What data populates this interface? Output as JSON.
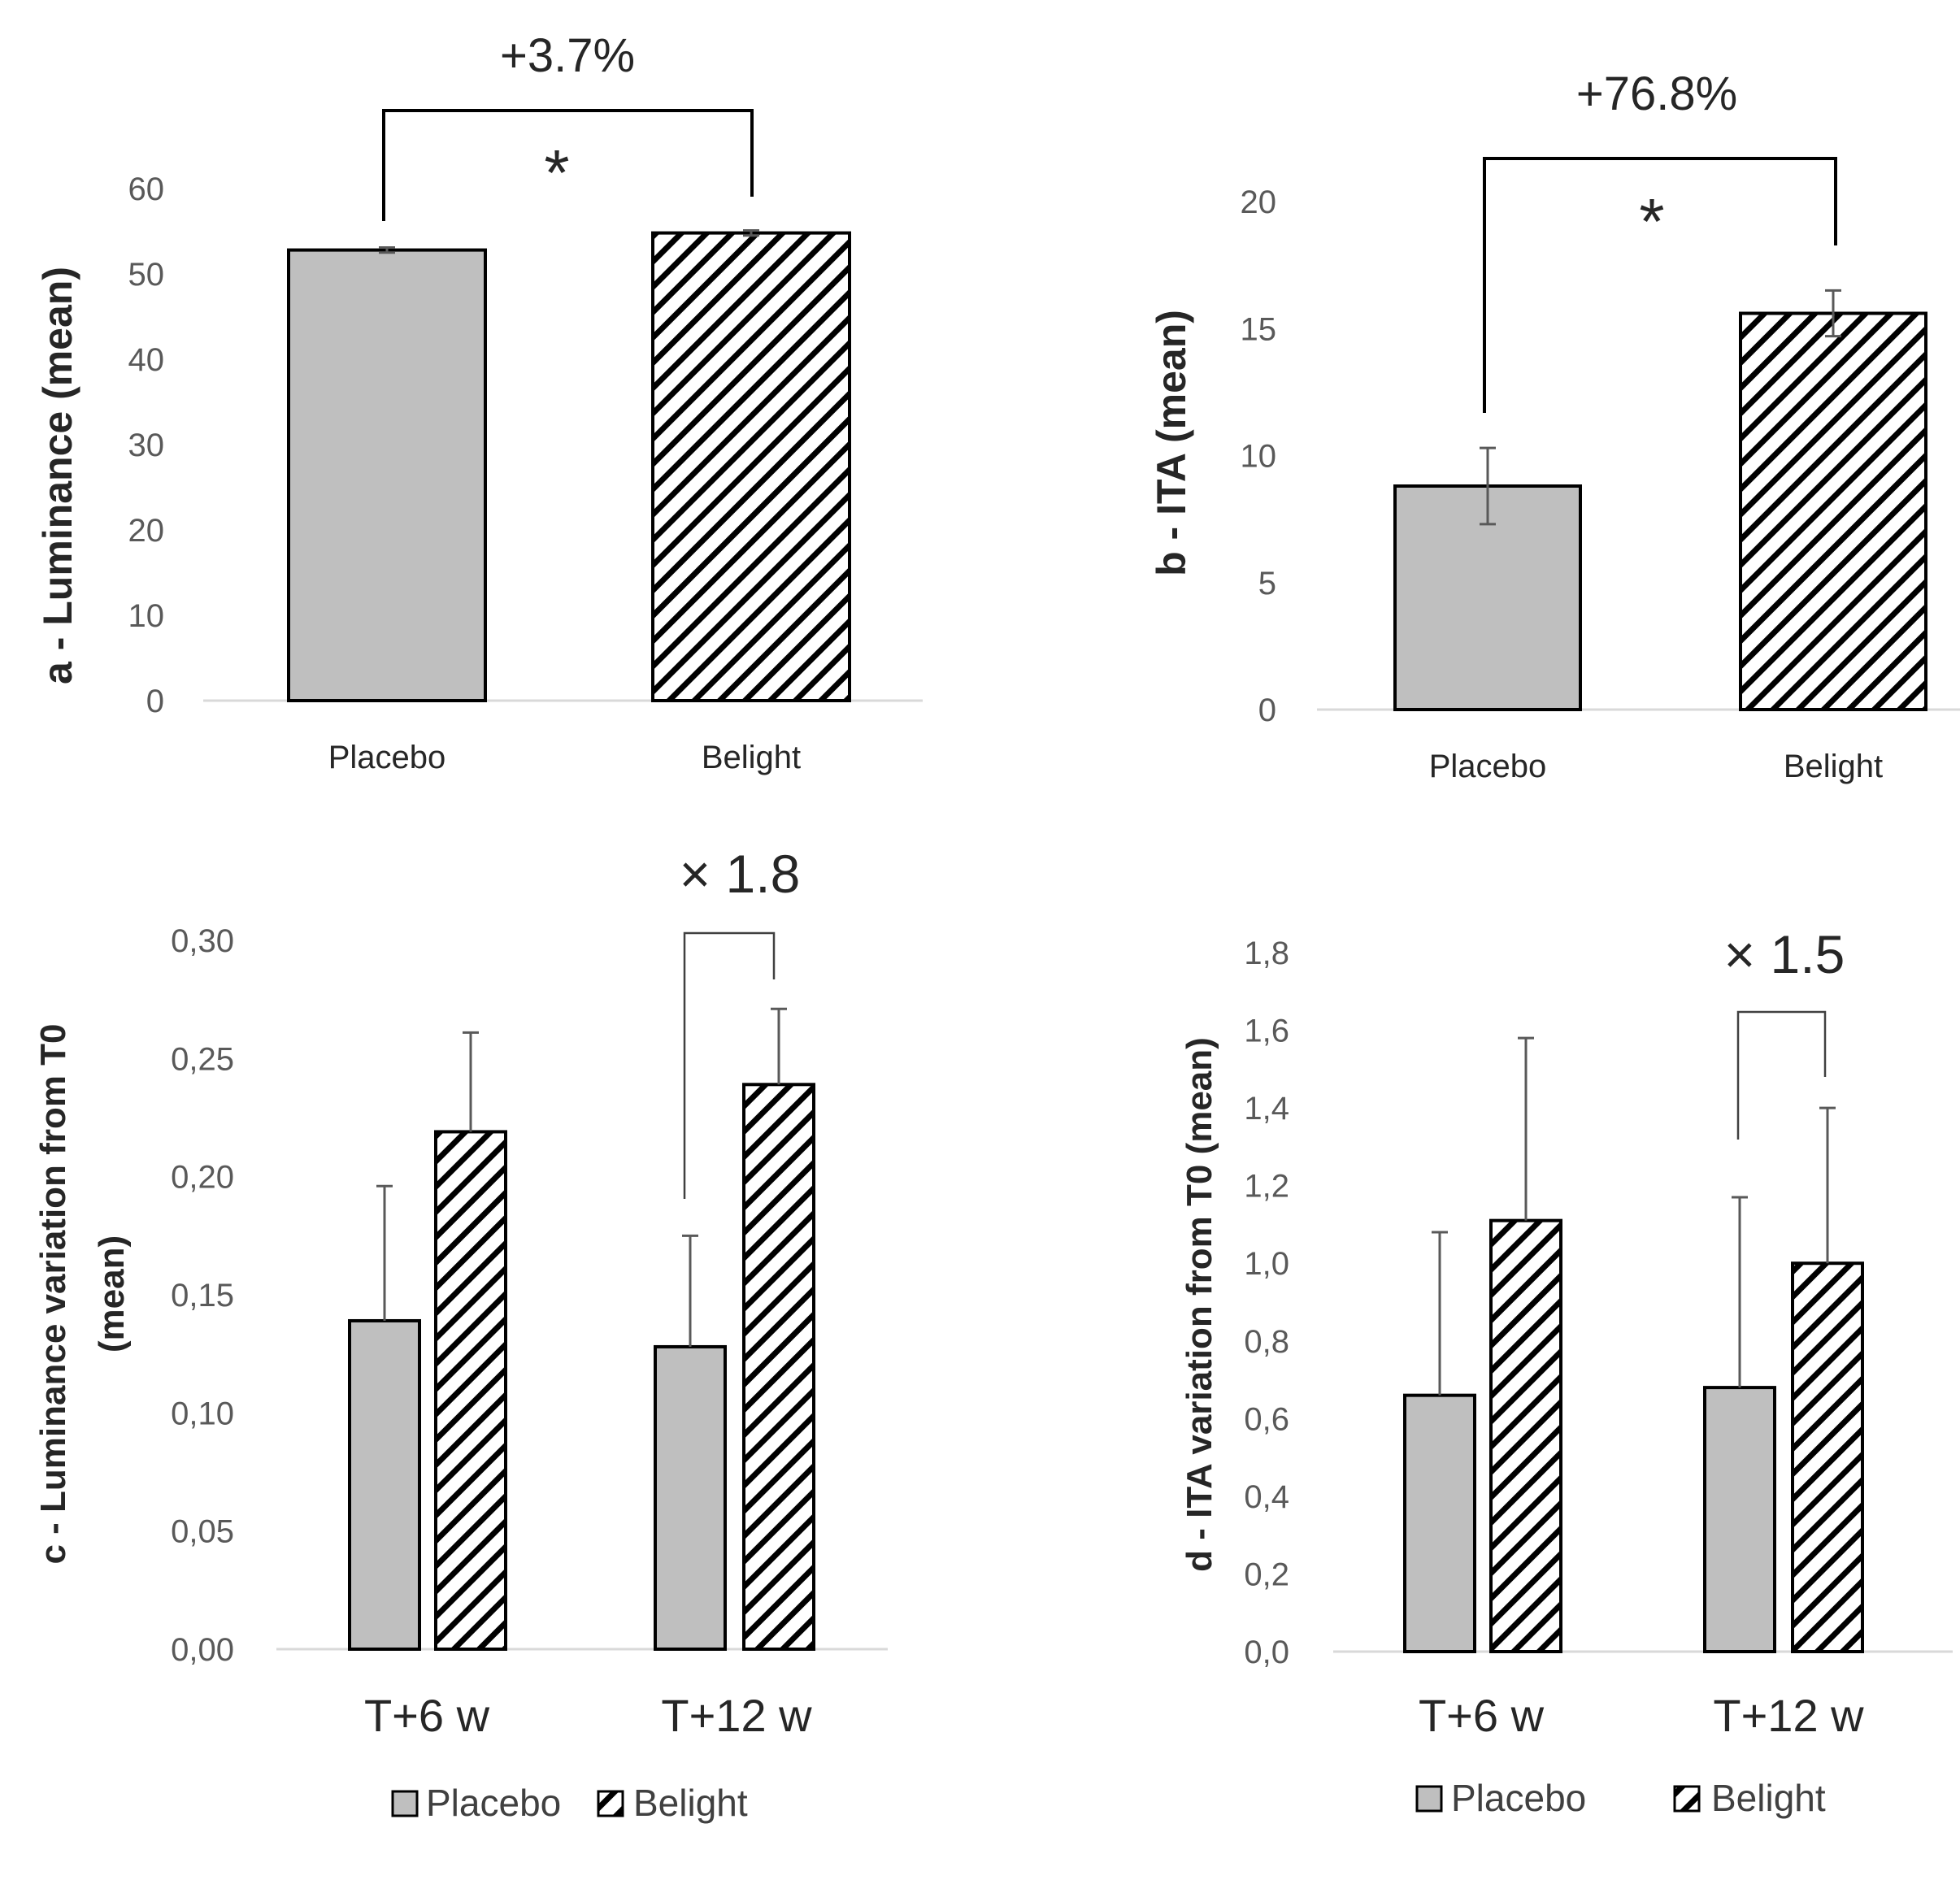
{
  "colors": {
    "placebo": "#bfbfbf",
    "belight_hatch": "#000000",
    "axis": "#d9d9d9",
    "text": "#262626"
  },
  "chart_data": [
    {
      "id": "a",
      "type": "bar",
      "ylabel": "a - Luminance (mean)",
      "categories": [
        "Placebo",
        "Belight"
      ],
      "values": [
        52.8,
        54.8
      ],
      "errors": [
        0.3,
        0.3
      ],
      "ylim": [
        0,
        60
      ],
      "yticks": [
        "0",
        "10",
        "20",
        "30",
        "40",
        "50",
        "60"
      ],
      "annotation": "+3.7%",
      "significance": "*"
    },
    {
      "id": "b",
      "type": "bar",
      "ylabel": "b - ITA (mean)",
      "categories": [
        "Placebo",
        "Belight"
      ],
      "values": [
        8.8,
        15.6
      ],
      "errors": [
        1.5,
        0.9
      ],
      "ylim": [
        0,
        20
      ],
      "yticks": [
        "0",
        "5",
        "10",
        "15",
        "20"
      ],
      "annotation": "+76.8%",
      "significance": "*"
    },
    {
      "id": "c",
      "type": "bar",
      "ylabel_lines": [
        "c - Luminance variation from T0",
        "(mean)"
      ],
      "categories": [
        "T+6 w",
        "T+12 w"
      ],
      "series": [
        {
          "name": "Placebo",
          "values": [
            0.139,
            0.128
          ],
          "errors": [
            0.057,
            0.047
          ]
        },
        {
          "name": "Belight",
          "values": [
            0.219,
            0.239
          ],
          "errors": [
            0.042,
            0.032
          ]
        }
      ],
      "ylim": [
        0,
        0.3
      ],
      "yticks": [
        "0,00",
        "0,05",
        "0,10",
        "0,15",
        "0,20",
        "0,25",
        "0,30"
      ],
      "annotation": "× 1.8",
      "legend": [
        "Placebo",
        "Belight"
      ]
    },
    {
      "id": "d",
      "type": "bar",
      "ylabel": "d - ITA variation from T0 (mean)",
      "categories": [
        "T+6 w",
        "T+12 w"
      ],
      "series": [
        {
          "name": "Placebo",
          "values": [
            0.66,
            0.68
          ],
          "errors": [
            0.42,
            0.49
          ]
        },
        {
          "name": "Belight",
          "values": [
            1.11,
            1.0
          ],
          "errors": [
            0.47,
            0.4
          ]
        }
      ],
      "ylim": [
        0,
        1.8
      ],
      "yticks": [
        "0,0",
        "0,2",
        "0,4",
        "0,6",
        "0,8",
        "1,0",
        "1,2",
        "1,4",
        "1,6",
        "1,8"
      ],
      "annotation": "× 1.5",
      "legend": [
        "Placebo",
        "Belight"
      ]
    }
  ]
}
